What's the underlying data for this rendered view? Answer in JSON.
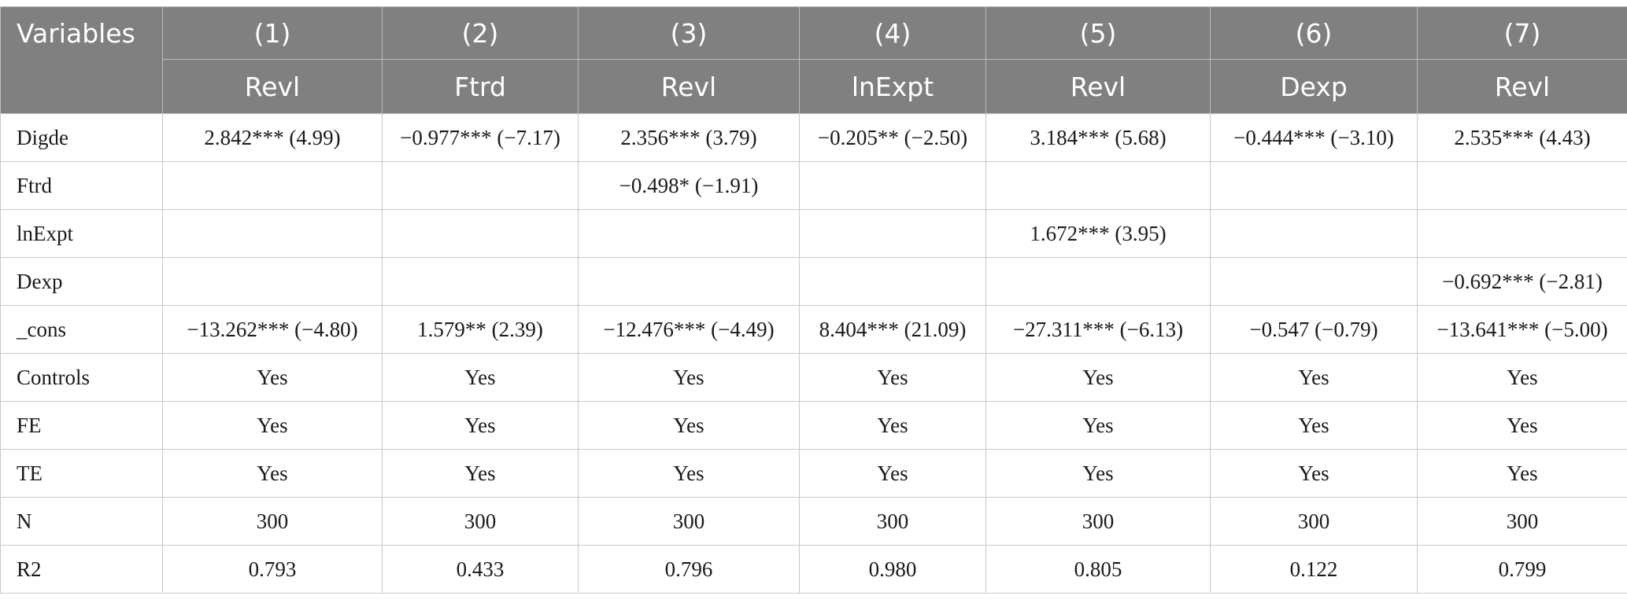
{
  "table": {
    "variables_label": "Variables",
    "column_numbers": [
      "(1)",
      "(2)",
      "(3)",
      "(4)",
      "(5)",
      "(6)",
      "(7)"
    ],
    "dependent_vars": [
      "Revl",
      "Ftrd",
      "Revl",
      "lnExpt",
      "Revl",
      "Dexp",
      "Revl"
    ],
    "rows": [
      {
        "label": "Digde",
        "cells": [
          "2.842*** (4.99)",
          "−0.977*** (−7.17)",
          "2.356*** (3.79)",
          "−0.205** (−2.50)",
          "3.184*** (5.68)",
          "−0.444*** (−3.10)",
          "2.535*** (4.43)"
        ]
      },
      {
        "label": "Ftrd",
        "cells": [
          "",
          "",
          "−0.498* (−1.91)",
          "",
          "",
          "",
          ""
        ]
      },
      {
        "label": "lnExpt",
        "cells": [
          "",
          "",
          "",
          "",
          "1.672*** (3.95)",
          "",
          ""
        ]
      },
      {
        "label": "Dexp",
        "cells": [
          "",
          "",
          "",
          "",
          "",
          "",
          "−0.692*** (−2.81)"
        ]
      },
      {
        "label": "_cons",
        "cells": [
          "−13.262*** (−4.80)",
          "1.579** (2.39)",
          "−12.476*** (−4.49)",
          "8.404*** (21.09)",
          "−27.311*** (−6.13)",
          "−0.547 (−0.79)",
          "−13.641*** (−5.00)"
        ]
      },
      {
        "label": "Controls",
        "cells": [
          "Yes",
          "Yes",
          "Yes",
          "Yes",
          "Yes",
          "Yes",
          "Yes"
        ]
      },
      {
        "label": "FE",
        "cells": [
          "Yes",
          "Yes",
          "Yes",
          "Yes",
          "Yes",
          "Yes",
          "Yes"
        ]
      },
      {
        "label": "TE",
        "cells": [
          "Yes",
          "Yes",
          "Yes",
          "Yes",
          "Yes",
          "Yes",
          "Yes"
        ]
      },
      {
        "label": "N",
        "cells": [
          "300",
          "300",
          "300",
          "300",
          "300",
          "300",
          "300"
        ]
      },
      {
        "label": "R2",
        "cells": [
          "0.793",
          "0.433",
          "0.796",
          "0.980",
          "0.805",
          "0.122",
          "0.799"
        ]
      }
    ]
  },
  "colors": {
    "header_bg": "#808080",
    "header_text": "#ffffff",
    "grid_line": "#c8c8c8",
    "body_text": "#1a1a1a"
  }
}
